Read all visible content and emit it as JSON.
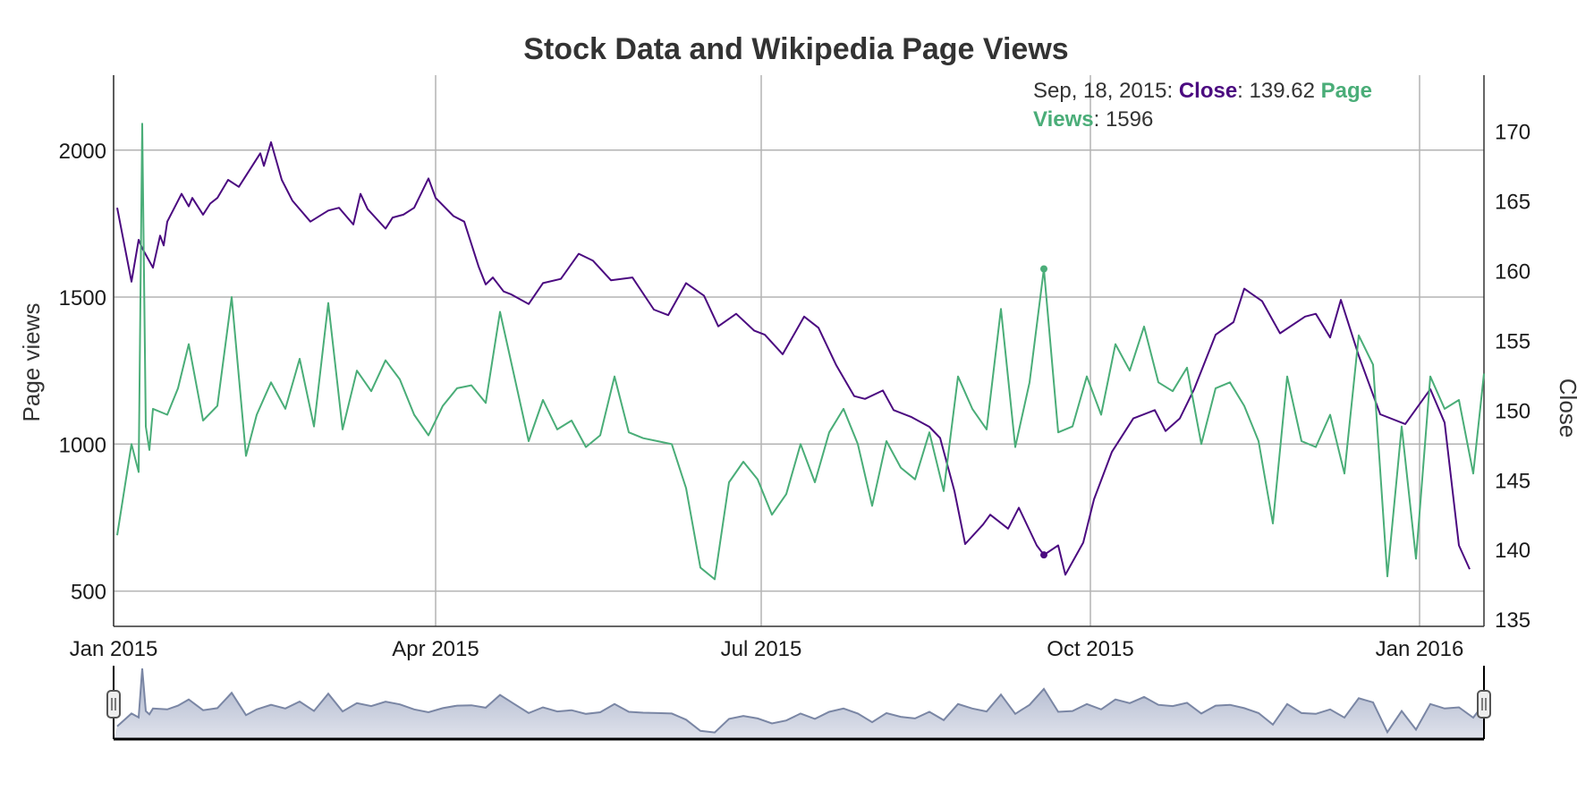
{
  "chart_data": {
    "type": "line",
    "title": "Stock Data and Wikipedia Page Views",
    "x_ticks": [
      {
        "date": "2015-01-01",
        "label": "Jan 2015"
      },
      {
        "date": "2015-04-01",
        "label": "Apr 2015"
      },
      {
        "date": "2015-07-01",
        "label": "Jul 2015"
      },
      {
        "date": "2015-10-01",
        "label": "Oct 2015"
      },
      {
        "date": "2016-01-01",
        "label": "Jan 2016"
      }
    ],
    "xlim": [
      "2015-01-01",
      "2016-01-19"
    ],
    "y_left": {
      "label": "Page views",
      "lim": [
        380,
        2255
      ],
      "ticks": [
        500,
        1000,
        1500,
        2000
      ]
    },
    "y_right": {
      "label": "Close",
      "lim": [
        134.5,
        174
      ],
      "ticks": [
        135,
        140,
        145,
        150,
        155,
        160,
        165,
        170
      ]
    },
    "grid": true,
    "series": [
      {
        "name": "Close",
        "axis": "right",
        "color": "#4b0a80",
        "x": [
          "2015-01-02",
          "2015-01-06",
          "2015-01-08",
          "2015-01-09",
          "2015-01-12",
          "2015-01-14",
          "2015-01-15",
          "2015-01-16",
          "2015-01-20",
          "2015-01-22",
          "2015-01-23",
          "2015-01-26",
          "2015-01-28",
          "2015-01-30",
          "2015-02-02",
          "2015-02-05",
          "2015-02-09",
          "2015-02-11",
          "2015-02-12",
          "2015-02-14",
          "2015-02-17",
          "2015-02-20",
          "2015-02-25",
          "2015-03-02",
          "2015-03-05",
          "2015-03-09",
          "2015-03-11",
          "2015-03-13",
          "2015-03-18",
          "2015-03-20",
          "2015-03-23",
          "2015-03-26",
          "2015-03-30",
          "2015-04-01",
          "2015-04-06",
          "2015-04-09",
          "2015-04-13",
          "2015-04-15",
          "2015-04-17",
          "2015-04-20",
          "2015-04-22",
          "2015-04-27",
          "2015-05-01",
          "2015-05-06",
          "2015-05-11",
          "2015-05-15",
          "2015-05-20",
          "2015-05-26",
          "2015-06-01",
          "2015-06-05",
          "2015-06-10",
          "2015-06-15",
          "2015-06-19",
          "2015-06-24",
          "2015-06-29",
          "2015-07-02",
          "2015-07-07",
          "2015-07-13",
          "2015-07-17",
          "2015-07-22",
          "2015-07-27",
          "2015-07-30",
          "2015-08-04",
          "2015-08-07",
          "2015-08-12",
          "2015-08-17",
          "2015-08-20",
          "2015-08-24",
          "2015-08-27",
          "2015-09-01",
          "2015-09-03",
          "2015-09-08",
          "2015-09-11",
          "2015-09-16",
          "2015-09-18",
          "2015-09-22",
          "2015-09-24",
          "2015-09-29",
          "2015-10-02",
          "2015-10-07",
          "2015-10-13",
          "2015-10-19",
          "2015-10-22",
          "2015-10-26",
          "2015-10-30",
          "2015-11-05",
          "2015-11-10",
          "2015-11-13",
          "2015-11-18",
          "2015-11-23",
          "2015-11-30",
          "2015-12-03",
          "2015-12-07",
          "2015-12-10",
          "2015-12-15",
          "2015-12-21",
          "2015-12-28",
          "2016-01-04",
          "2016-01-08",
          "2016-01-12",
          "2016-01-15"
        ],
        "values": [
          164.5,
          159.2,
          162.2,
          161.6,
          160.2,
          162.5,
          161.8,
          163.5,
          165.5,
          164.6,
          165.2,
          164.0,
          164.8,
          165.2,
          166.5,
          166.0,
          167.6,
          168.4,
          167.5,
          169.2,
          166.5,
          165.0,
          163.5,
          164.3,
          164.5,
          163.3,
          165.5,
          164.4,
          163.0,
          163.8,
          164.0,
          164.5,
          166.6,
          165.2,
          163.9,
          163.5,
          160.3,
          159.0,
          159.5,
          158.5,
          158.3,
          157.6,
          159.1,
          159.4,
          161.2,
          160.7,
          159.3,
          159.5,
          157.2,
          156.8,
          159.1,
          158.2,
          156.0,
          156.9,
          155.7,
          155.4,
          154.0,
          156.7,
          155.9,
          153.2,
          151.0,
          150.8,
          151.4,
          150.0,
          149.5,
          148.8,
          148.0,
          144.2,
          140.4,
          141.8,
          142.5,
          141.5,
          143.0,
          140.3,
          139.62,
          140.3,
          138.2,
          140.5,
          143.6,
          147.0,
          149.4,
          150.0,
          148.5,
          149.4,
          151.5,
          155.4,
          156.3,
          158.7,
          157.8,
          155.5,
          156.7,
          156.9,
          155.2,
          157.9,
          153.9,
          149.7,
          149.0,
          151.5,
          149.1,
          140.3,
          138.6
        ]
      },
      {
        "name": "Page Views",
        "axis": "left",
        "color": "#4aad78",
        "x": [
          "2015-01-02",
          "2015-01-06",
          "2015-01-08",
          "2015-01-09",
          "2015-01-10",
          "2015-01-11",
          "2015-01-12",
          "2015-01-16",
          "2015-01-19",
          "2015-01-22",
          "2015-01-26",
          "2015-01-30",
          "2015-02-03",
          "2015-02-07",
          "2015-02-10",
          "2015-02-14",
          "2015-02-18",
          "2015-02-22",
          "2015-02-26",
          "2015-03-02",
          "2015-03-06",
          "2015-03-10",
          "2015-03-14",
          "2015-03-18",
          "2015-03-22",
          "2015-03-26",
          "2015-03-30",
          "2015-04-03",
          "2015-04-07",
          "2015-04-11",
          "2015-04-15",
          "2015-04-19",
          "2015-04-23",
          "2015-04-27",
          "2015-05-01",
          "2015-05-05",
          "2015-05-09",
          "2015-05-13",
          "2015-05-17",
          "2015-05-21",
          "2015-05-25",
          "2015-05-29",
          "2015-06-02",
          "2015-06-06",
          "2015-06-10",
          "2015-06-14",
          "2015-06-18",
          "2015-06-22",
          "2015-06-26",
          "2015-06-30",
          "2015-07-04",
          "2015-07-08",
          "2015-07-12",
          "2015-07-16",
          "2015-07-20",
          "2015-07-24",
          "2015-07-28",
          "2015-08-01",
          "2015-08-05",
          "2015-08-09",
          "2015-08-13",
          "2015-08-17",
          "2015-08-21",
          "2015-08-25",
          "2015-08-29",
          "2015-09-02",
          "2015-09-06",
          "2015-09-10",
          "2015-09-14",
          "2015-09-18",
          "2015-09-22",
          "2015-09-26",
          "2015-09-30",
          "2015-10-04",
          "2015-10-08",
          "2015-10-12",
          "2015-10-16",
          "2015-10-20",
          "2015-10-24",
          "2015-10-28",
          "2015-11-01",
          "2015-11-05",
          "2015-11-09",
          "2015-11-13",
          "2015-11-17",
          "2015-11-21",
          "2015-11-25",
          "2015-11-29",
          "2015-12-03",
          "2015-12-07",
          "2015-12-11",
          "2015-12-15",
          "2015-12-19",
          "2015-12-23",
          "2015-12-27",
          "2015-12-31",
          "2016-01-04",
          "2016-01-08",
          "2016-01-12",
          "2016-01-16",
          "2016-01-19"
        ],
        "values": [
          690,
          1000,
          905,
          2090,
          1060,
          980,
          1120,
          1100,
          1190,
          1340,
          1080,
          1130,
          1500,
          960,
          1100,
          1210,
          1120,
          1290,
          1060,
          1480,
          1050,
          1250,
          1180,
          1285,
          1220,
          1100,
          1030,
          1130,
          1190,
          1200,
          1140,
          1450,
          1230,
          1010,
          1150,
          1050,
          1080,
          990,
          1030,
          1230,
          1040,
          1020,
          1010,
          1000,
          850,
          580,
          540,
          870,
          940,
          880,
          760,
          830,
          1000,
          870,
          1040,
          1120,
          1000,
          790,
          1010,
          920,
          880,
          1040,
          840,
          1230,
          1120,
          1050,
          1460,
          990,
          1210,
          1596,
          1040,
          1060,
          1230,
          1100,
          1340,
          1250,
          1400,
          1210,
          1180,
          1260,
          1000,
          1190,
          1210,
          1130,
          1010,
          730,
          1230,
          1010,
          990,
          1100,
          900,
          1370,
          1270,
          550,
          1060,
          610,
          1230,
          1120,
          1150,
          900,
          1240
        ]
      }
    ],
    "hover": {
      "date": "Sep, 18, 2015",
      "date_iso": "2015-09-18",
      "close_label": "Close",
      "close_value": "139.62",
      "views_label_1": "Page",
      "views_label_2": "Views",
      "views_value": "1596",
      "sep": ": "
    }
  }
}
